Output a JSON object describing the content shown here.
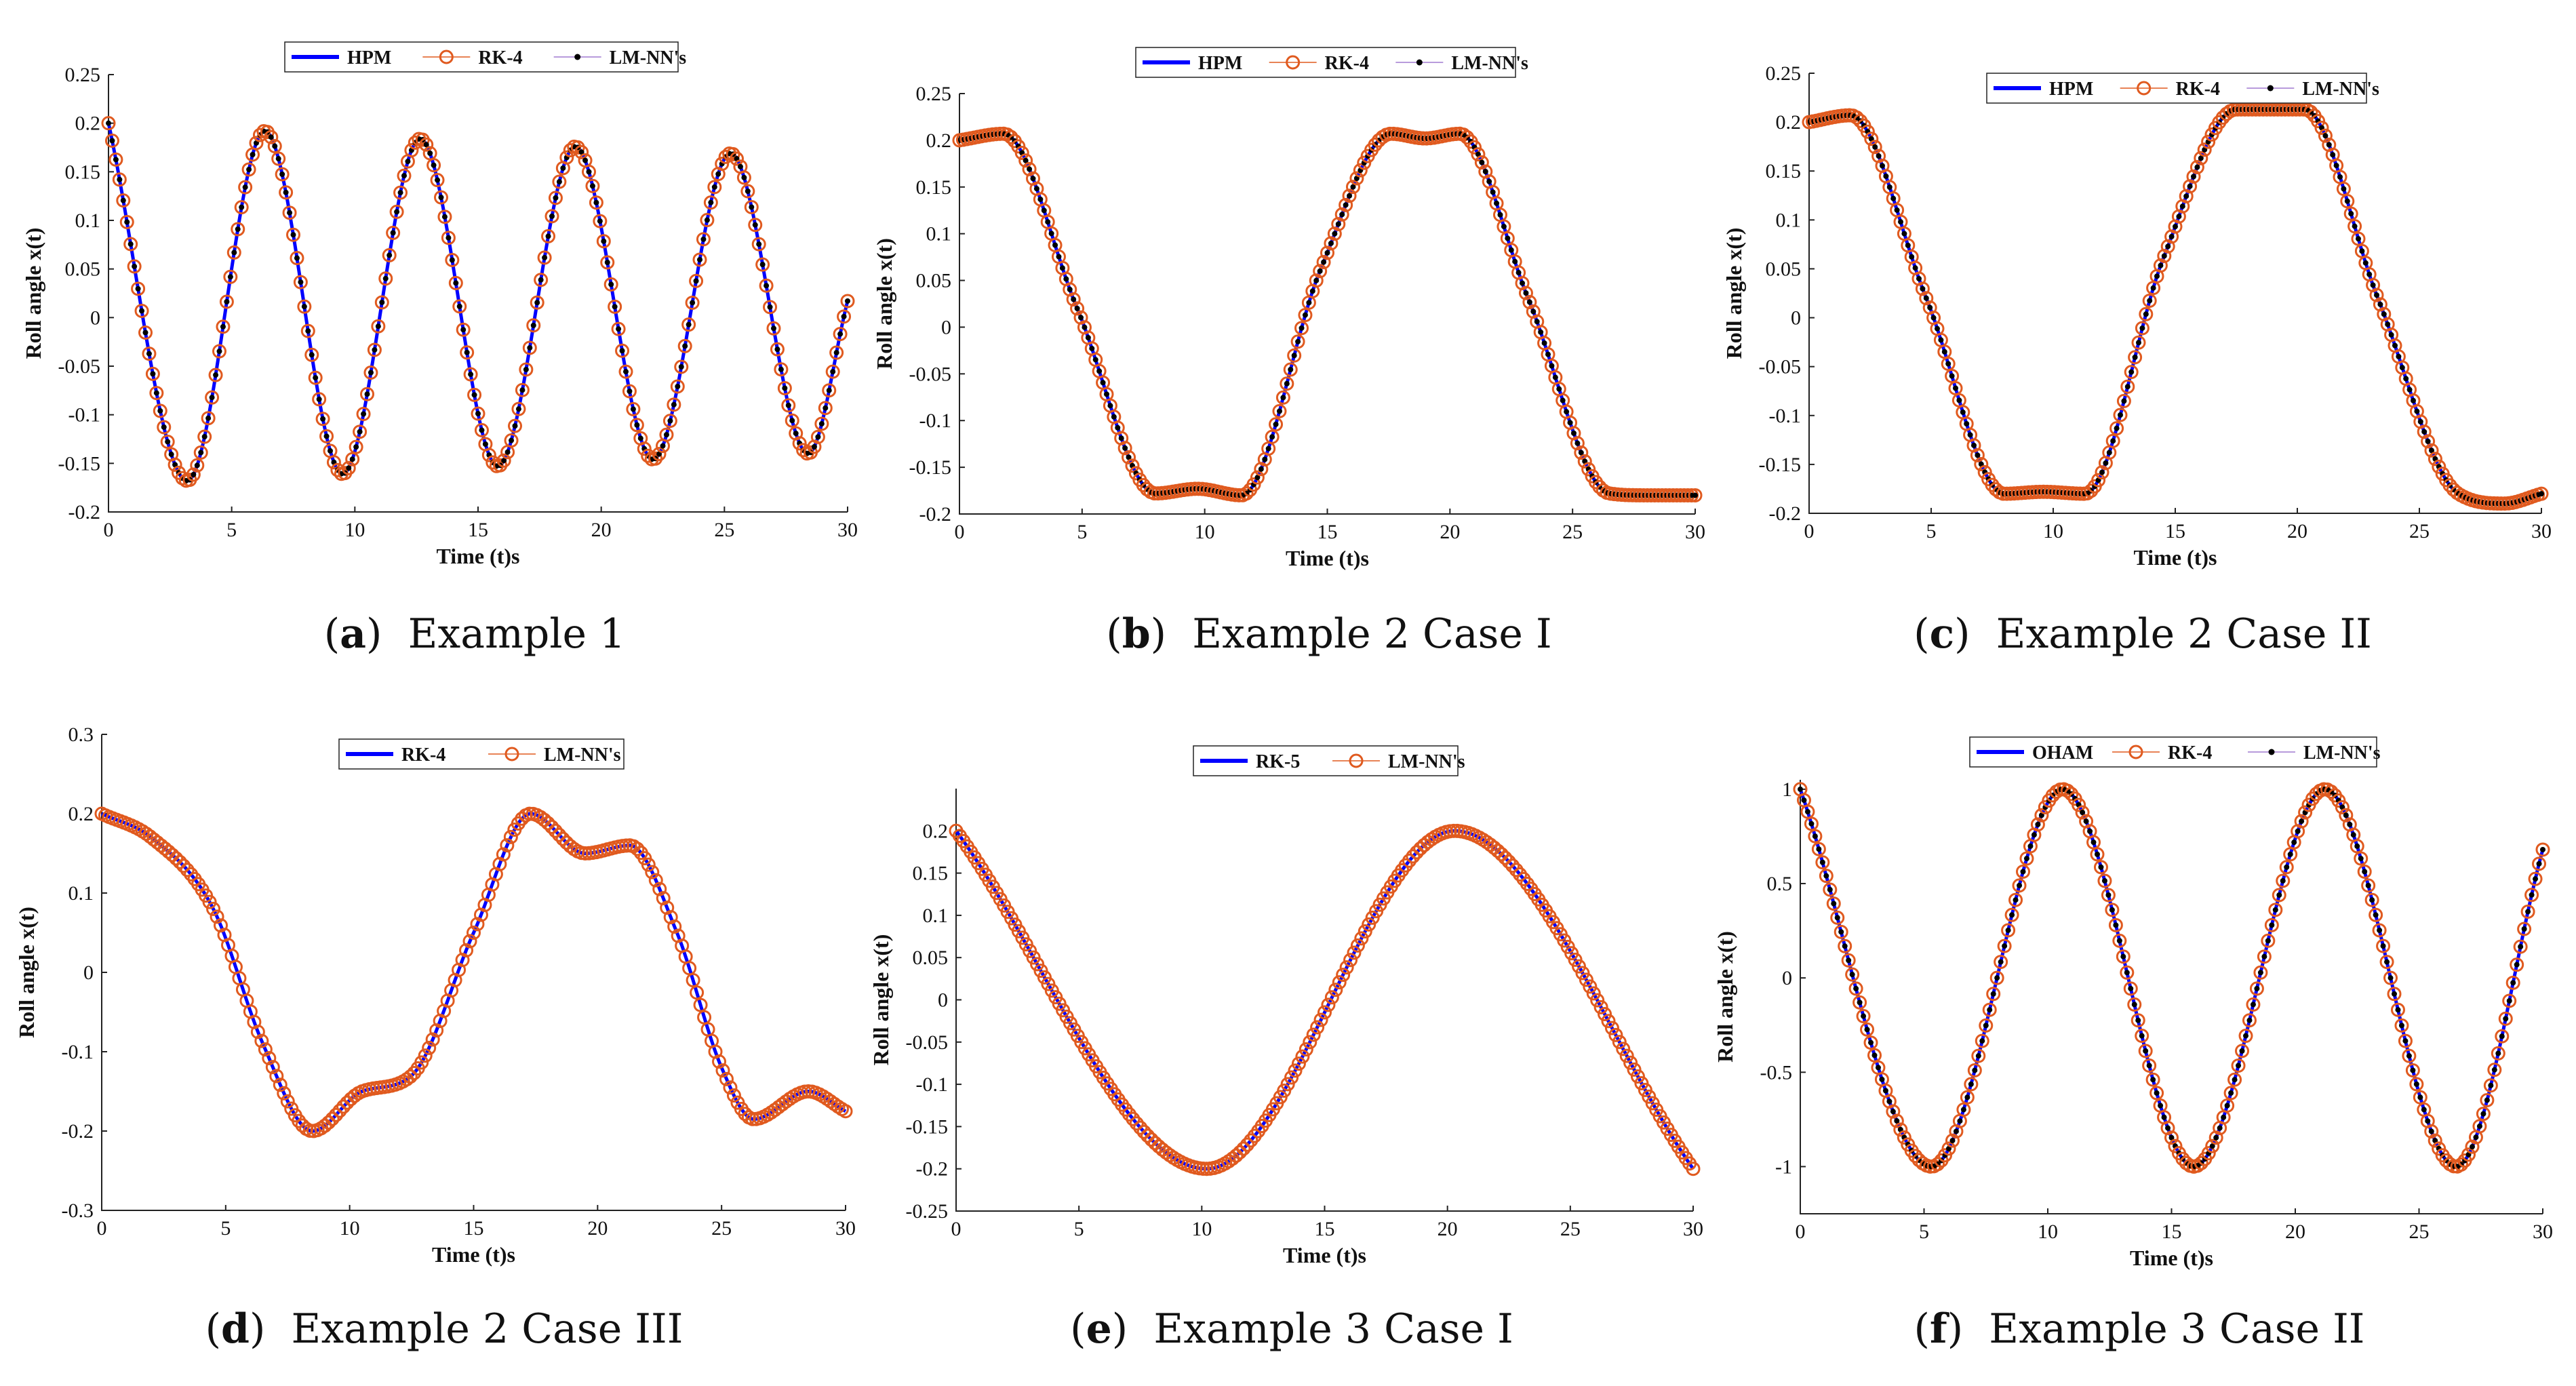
{
  "colors": {
    "hpm": "#0000ff",
    "rk": "#e05a1f",
    "lm_marker": "#000000",
    "lm_line": "#a07ad0"
  },
  "chart_data": [
    {
      "id": "a",
      "type": "line",
      "letter": "a",
      "caption": "Example 1",
      "xlabel": "Time (t)s",
      "ylabel": "Roll angle x(t)",
      "xlim": [
        0,
        30
      ],
      "ylim": [
        -0.2,
        0.25
      ],
      "xticks": [
        0,
        5,
        10,
        15,
        20,
        25,
        30
      ],
      "yticks": [
        -0.2,
        -0.15,
        -0.1,
        -0.05,
        0,
        0.05,
        0.1,
        0.15,
        0.2,
        0.25
      ],
      "ytick_labels": [
        "-0.2",
        "-0.15",
        "-0.1",
        "-0.05",
        "0",
        "0.05",
        "0.1",
        "0.15",
        "0.2",
        "0.25"
      ],
      "legend": [
        "HPM",
        "RK-4",
        "LM-NN's"
      ],
      "keypoints": {
        "x": [
          0,
          3.2,
          6.35,
          9.5,
          12.65,
          15.8,
          18.95,
          22.1,
          25.25,
          28.4,
          30
        ],
        "y": [
          0.2,
          -0.168,
          0.192,
          -0.161,
          0.184,
          -0.153,
          0.176,
          -0.146,
          0.169,
          -0.14,
          0.017
        ]
      }
    },
    {
      "id": "b",
      "type": "line",
      "letter": "b",
      "caption": "Example 2 Case I",
      "xlabel": "Time (t)s",
      "ylabel": "Roll angle x(t)",
      "xlim": [
        0,
        30
      ],
      "ylim": [
        -0.2,
        0.25
      ],
      "xticks": [
        0,
        5,
        10,
        15,
        20,
        25,
        30
      ],
      "yticks": [
        -0.2,
        -0.15,
        -0.1,
        -0.05,
        0,
        0.05,
        0.1,
        0.15,
        0.2,
        0.25
      ],
      "ytick_labels": [
        "-0.2",
        "-0.15",
        "-0.1",
        "-0.05",
        "0",
        "0.05",
        "0.1",
        "0.15",
        "0.2",
        "0.25"
      ],
      "legend": [
        "HPM",
        "RK-4",
        "LM-NN's"
      ],
      "keypoints": {
        "x": [
          0,
          1.8,
          4.8,
          8.0,
          9.7,
          11.5,
          14.7,
          17.6,
          19.0,
          20.4,
          23.2,
          26.5,
          28.0,
          30
        ],
        "y": [
          0.2,
          0.207,
          0.02,
          -0.178,
          -0.173,
          -0.18,
          0.06,
          0.207,
          0.202,
          0.207,
          0.03,
          -0.178,
          -0.18,
          -0.18
        ]
      }
    },
    {
      "id": "c",
      "type": "line",
      "letter": "c",
      "caption": "Example 2 Case II",
      "xlabel": "Time (t)s",
      "ylabel": "Roll angle x(t)",
      "xlim": [
        0,
        30
      ],
      "ylim": [
        -0.2,
        0.25
      ],
      "xticks": [
        0,
        5,
        10,
        15,
        20,
        25,
        30
      ],
      "yticks": [
        -0.2,
        -0.15,
        -0.1,
        -0.05,
        0,
        0.05,
        0.1,
        0.15,
        0.2,
        0.25
      ],
      "ytick_labels": [
        "-0.2",
        "-0.15",
        "-0.1",
        "-0.05",
        "0",
        "0.05",
        "0.1",
        "0.15",
        "0.2",
        "0.25"
      ],
      "legend": [
        "HPM",
        "RK-4",
        "LM-NN's"
      ],
      "keypoints": {
        "x": [
          0,
          1.7,
          4.8,
          8.0,
          9.6,
          11.3,
          14.5,
          17.5,
          20.3,
          23.3,
          26.6,
          28.5,
          30
        ],
        "y": [
          0.2,
          0.207,
          0.02,
          -0.18,
          -0.178,
          -0.18,
          0.06,
          0.213,
          0.213,
          0.02,
          -0.18,
          -0.19,
          -0.18
        ]
      }
    },
    {
      "id": "d",
      "type": "line",
      "letter": "d",
      "caption": "Example 2 Case III",
      "xlabel": "Time (t)s",
      "ylabel": "Roll angle x(t)",
      "xlim": [
        0,
        30
      ],
      "ylim": [
        -0.3,
        0.3
      ],
      "xticks": [
        0,
        5,
        10,
        15,
        20,
        25,
        30
      ],
      "yticks": [
        -0.3,
        -0.2,
        -0.1,
        0,
        0.1,
        0.2,
        0.3
      ],
      "ytick_labels": [
        "-0.3",
        "-0.2",
        "-0.1",
        "0",
        "0.1",
        "0.2",
        "0.3"
      ],
      "legend": [
        "RK-4",
        "LM-NN's"
      ],
      "keypoints": {
        "x": [
          0,
          2.0,
          4.5,
          6.5,
          8.5,
          10.5,
          12.5,
          15.0,
          17.3,
          19.5,
          21.3,
          23.2,
          25.0,
          26.3,
          28.5,
          30
        ],
        "y": [
          0.2,
          0.17,
          0.08,
          -0.09,
          -0.2,
          -0.15,
          -0.13,
          0.05,
          0.2,
          0.15,
          0.16,
          0.05,
          -0.12,
          -0.185,
          -0.15,
          -0.175
        ]
      }
    },
    {
      "id": "e",
      "type": "line",
      "letter": "e",
      "caption": "Example 3 Case I",
      "xlabel": "Time (t)s",
      "ylabel": "Roll angle x(t)",
      "xlim": [
        0,
        30
      ],
      "ylim": [
        -0.25,
        0.25
      ],
      "xticks": [
        0,
        5,
        10,
        15,
        20,
        25,
        30
      ],
      "yticks": [
        -0.25,
        -0.2,
        -0.15,
        -0.1,
        -0.05,
        0,
        0.05,
        0.1,
        0.15,
        0.2
      ],
      "ytick_labels": [
        "-0.25",
        "-0.2",
        "-0.15",
        "-0.1",
        "-0.05",
        "0",
        "0.05",
        "0.1",
        "0.15",
        "0.2"
      ],
      "legend": [
        "RK-5",
        "LM-NN's"
      ],
      "keypoints": {
        "x": [
          0,
          10.2,
          20.3,
          30
        ],
        "y": [
          0.2,
          -0.2,
          0.2,
          -0.2
        ]
      }
    },
    {
      "id": "f",
      "type": "line",
      "letter": "f",
      "caption": "Example 3 Case II",
      "xlabel": "Time (t)s",
      "ylabel": "Roll angle x(t)",
      "xlim": [
        0,
        30
      ],
      "ylim": [
        -1.25,
        1.05
      ],
      "xticks": [
        0,
        5,
        10,
        15,
        20,
        25,
        30
      ],
      "yticks": [
        -1,
        -0.5,
        0,
        0.5,
        1
      ],
      "ytick_labels": [
        "-1",
        "-0.5",
        "0",
        "0.5",
        "1"
      ],
      "legend": [
        "OHAM",
        "RK-4",
        "LM-NN's"
      ],
      "keypoints": {
        "x": [
          0,
          5.3,
          10.6,
          15.9,
          21.2,
          26.5,
          30
        ],
        "y": [
          1,
          -1,
          1,
          -1,
          1,
          -1,
          0.68
        ]
      }
    }
  ]
}
